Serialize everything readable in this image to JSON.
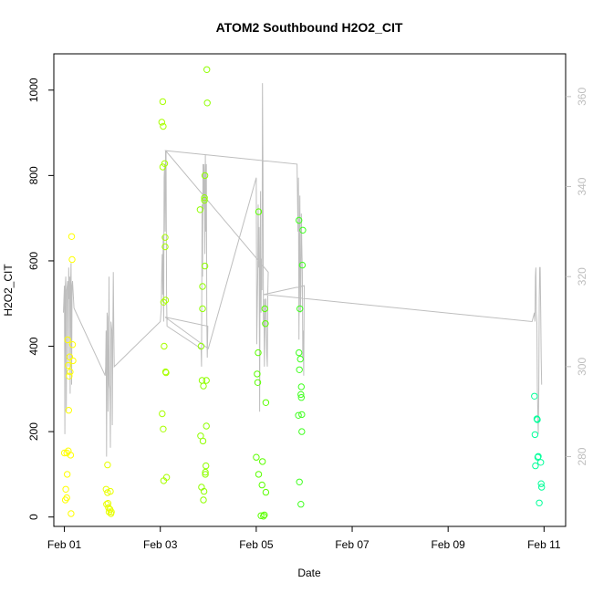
{
  "chart_data": {
    "type": "scatter",
    "title": "ATOM2 Southbound H2O2_CIT",
    "xlabel": "Date",
    "ylabel": "H2O2_CIT",
    "x_ticks": [
      {
        "value": 0,
        "label": "Feb 01"
      },
      {
        "value": 2,
        "label": "Feb 03"
      },
      {
        "value": 4,
        "label": "Feb 05"
      },
      {
        "value": 6,
        "label": "Feb 07"
      },
      {
        "value": 8,
        "label": "Feb 09"
      },
      {
        "value": 10,
        "label": "Feb 11"
      }
    ],
    "xlim": [
      -0.22,
      10.45
    ],
    "ylim": [
      -22,
      1085
    ],
    "y_ticks": [
      0,
      200,
      400,
      600,
      800,
      1000
    ],
    "y2_ticks": [
      280,
      300,
      320,
      340,
      360
    ],
    "y2lim": [
      264.5,
      369.5
    ],
    "points": [
      {
        "x": 0.0,
        "y": 150,
        "c": "#ffff00"
      },
      {
        "x": 0.02,
        "y": 40,
        "c": "#ffff00"
      },
      {
        "x": 0.03,
        "y": 65,
        "c": "#ffff00"
      },
      {
        "x": 0.05,
        "y": 150,
        "c": "#ffff00"
      },
      {
        "x": 0.05,
        "y": 45,
        "c": "#ffff00"
      },
      {
        "x": 0.06,
        "y": 100,
        "c": "#ffff00"
      },
      {
        "x": 0.07,
        "y": 415,
        "c": "#ffff00"
      },
      {
        "x": 0.08,
        "y": 355,
        "c": "#ffff00"
      },
      {
        "x": 0.08,
        "y": 155,
        "c": "#ffff00"
      },
      {
        "x": 0.09,
        "y": 250,
        "c": "#ffff00"
      },
      {
        "x": 0.1,
        "y": 330,
        "c": "#ffff00"
      },
      {
        "x": 0.11,
        "y": 375,
        "c": "#ffff00"
      },
      {
        "x": 0.12,
        "y": 340,
        "c": "#ffff00"
      },
      {
        "x": 0.13,
        "y": 145,
        "c": "#ffff00"
      },
      {
        "x": 0.14,
        "y": 8,
        "c": "#ffff00"
      },
      {
        "x": 0.15,
        "y": 657,
        "c": "#ffff00"
      },
      {
        "x": 0.16,
        "y": 603,
        "c": "#ffff00"
      },
      {
        "x": 0.17,
        "y": 404,
        "c": "#ffff00"
      },
      {
        "x": 0.18,
        "y": 366,
        "c": "#ffff00"
      },
      {
        "x": 0.87,
        "y": 65,
        "c": "#e8ff00"
      },
      {
        "x": 0.88,
        "y": 30,
        "c": "#e8ff00"
      },
      {
        "x": 0.9,
        "y": 122,
        "c": "#e8ff00"
      },
      {
        "x": 0.9,
        "y": 57,
        "c": "#e8ff00"
      },
      {
        "x": 0.91,
        "y": 32,
        "c": "#e8ff00"
      },
      {
        "x": 0.92,
        "y": 22,
        "c": "#e8ff00"
      },
      {
        "x": 0.93,
        "y": 12,
        "c": "#e8ff00"
      },
      {
        "x": 0.95,
        "y": 18,
        "c": "#e8ff00"
      },
      {
        "x": 0.96,
        "y": 60,
        "c": "#e8ff00"
      },
      {
        "x": 0.97,
        "y": 8,
        "c": "#e8ff00"
      },
      {
        "x": 0.98,
        "y": 12,
        "c": "#e8ff00"
      },
      {
        "x": 2.03,
        "y": 925,
        "c": "#a8ff00"
      },
      {
        "x": 2.04,
        "y": 242,
        "c": "#a8ff00"
      },
      {
        "x": 2.05,
        "y": 973,
        "c": "#a8ff00"
      },
      {
        "x": 2.05,
        "y": 820,
        "c": "#a8ff00"
      },
      {
        "x": 2.06,
        "y": 915,
        "c": "#a8ff00"
      },
      {
        "x": 2.06,
        "y": 206,
        "c": "#a8ff00"
      },
      {
        "x": 2.07,
        "y": 503,
        "c": "#a8ff00"
      },
      {
        "x": 2.07,
        "y": 85,
        "c": "#a8ff00"
      },
      {
        "x": 2.08,
        "y": 400,
        "c": "#a8ff00"
      },
      {
        "x": 2.09,
        "y": 828,
        "c": "#a8ff00"
      },
      {
        "x": 2.1,
        "y": 655,
        "c": "#a8ff00"
      },
      {
        "x": 2.1,
        "y": 633,
        "c": "#a8ff00"
      },
      {
        "x": 2.11,
        "y": 508,
        "c": "#a8ff00"
      },
      {
        "x": 2.11,
        "y": 340,
        "c": "#a8ff00"
      },
      {
        "x": 2.12,
        "y": 338,
        "c": "#a8ff00"
      },
      {
        "x": 2.13,
        "y": 93,
        "c": "#a8ff00"
      },
      {
        "x": 2.83,
        "y": 720,
        "c": "#90ff00"
      },
      {
        "x": 2.84,
        "y": 190,
        "c": "#90ff00"
      },
      {
        "x": 2.85,
        "y": 400,
        "c": "#90ff00"
      },
      {
        "x": 2.86,
        "y": 70,
        "c": "#90ff00"
      },
      {
        "x": 2.87,
        "y": 320,
        "c": "#90ff00"
      },
      {
        "x": 2.88,
        "y": 540,
        "c": "#90ff00"
      },
      {
        "x": 2.88,
        "y": 488,
        "c": "#90ff00"
      },
      {
        "x": 2.89,
        "y": 178,
        "c": "#90ff00"
      },
      {
        "x": 2.9,
        "y": 307,
        "c": "#90ff00"
      },
      {
        "x": 2.9,
        "y": 40,
        "c": "#90ff00"
      },
      {
        "x": 2.91,
        "y": 60,
        "c": "#90ff00"
      },
      {
        "x": 2.92,
        "y": 748,
        "c": "#90ff00"
      },
      {
        "x": 2.92,
        "y": 742,
        "c": "#90ff00"
      },
      {
        "x": 2.93,
        "y": 800,
        "c": "#90ff00"
      },
      {
        "x": 2.93,
        "y": 588,
        "c": "#90ff00"
      },
      {
        "x": 2.94,
        "y": 100,
        "c": "#90ff00"
      },
      {
        "x": 2.94,
        "y": 105,
        "c": "#90ff00"
      },
      {
        "x": 2.95,
        "y": 120,
        "c": "#90ff00"
      },
      {
        "x": 2.96,
        "y": 320,
        "c": "#90ff00"
      },
      {
        "x": 2.96,
        "y": 213,
        "c": "#90ff00"
      },
      {
        "x": 2.97,
        "y": 1048,
        "c": "#90ff00"
      },
      {
        "x": 2.98,
        "y": 970,
        "c": "#90ff00"
      },
      {
        "x": 4.0,
        "y": 140,
        "c": "#5aff00"
      },
      {
        "x": 4.02,
        "y": 335,
        "c": "#5aff00"
      },
      {
        "x": 4.03,
        "y": 315,
        "c": "#5aff00"
      },
      {
        "x": 4.04,
        "y": 385,
        "c": "#5aff00"
      },
      {
        "x": 4.05,
        "y": 715,
        "c": "#5aff00"
      },
      {
        "x": 4.05,
        "y": 100,
        "c": "#5aff00"
      },
      {
        "x": 4.1,
        "y": 3,
        "c": "#5aff00"
      },
      {
        "x": 4.12,
        "y": 75,
        "c": "#5aff00"
      },
      {
        "x": 4.13,
        "y": 130,
        "c": "#5aff00"
      },
      {
        "x": 4.15,
        "y": 2,
        "c": "#5aff00"
      },
      {
        "x": 4.17,
        "y": 5,
        "c": "#5aff00"
      },
      {
        "x": 4.18,
        "y": 488,
        "c": "#5aff00"
      },
      {
        "x": 4.19,
        "y": 453,
        "c": "#5aff00"
      },
      {
        "x": 4.2,
        "y": 268,
        "c": "#5aff00"
      },
      {
        "x": 4.2,
        "y": 58,
        "c": "#5aff00"
      },
      {
        "x": 4.88,
        "y": 238,
        "c": "#40ff20"
      },
      {
        "x": 4.89,
        "y": 695,
        "c": "#40ff20"
      },
      {
        "x": 4.89,
        "y": 385,
        "c": "#40ff20"
      },
      {
        "x": 4.9,
        "y": 345,
        "c": "#40ff20"
      },
      {
        "x": 4.9,
        "y": 82,
        "c": "#40ff20"
      },
      {
        "x": 4.91,
        "y": 488,
        "c": "#40ff20"
      },
      {
        "x": 4.92,
        "y": 370,
        "c": "#40ff20"
      },
      {
        "x": 4.93,
        "y": 30,
        "c": "#40ff20"
      },
      {
        "x": 4.93,
        "y": 287,
        "c": "#40ff20"
      },
      {
        "x": 4.94,
        "y": 305,
        "c": "#40ff20"
      },
      {
        "x": 4.94,
        "y": 280,
        "c": "#40ff20"
      },
      {
        "x": 4.95,
        "y": 240,
        "c": "#40ff20"
      },
      {
        "x": 4.95,
        "y": 200,
        "c": "#40ff20"
      },
      {
        "x": 4.96,
        "y": 590,
        "c": "#40ff20"
      },
      {
        "x": 4.97,
        "y": 672,
        "c": "#40ff20"
      },
      {
        "x": 9.8,
        "y": 283,
        "c": "#00ff99"
      },
      {
        "x": 9.81,
        "y": 193,
        "c": "#00ff99"
      },
      {
        "x": 9.82,
        "y": 120,
        "c": "#00ff99"
      },
      {
        "x": 9.85,
        "y": 230,
        "c": "#00ff99"
      },
      {
        "x": 9.86,
        "y": 228,
        "c": "#00ff99"
      },
      {
        "x": 9.87,
        "y": 140,
        "c": "#00ff99"
      },
      {
        "x": 9.88,
        "y": 142,
        "c": "#00ff99"
      },
      {
        "x": 9.9,
        "y": 33,
        "c": "#00ff99"
      },
      {
        "x": 9.93,
        "y": 128,
        "c": "#00ff99"
      },
      {
        "x": 9.94,
        "y": 78,
        "c": "#00ff99"
      },
      {
        "x": 9.95,
        "y": 70,
        "c": "#00ff99"
      }
    ],
    "line_y2": [
      [
        -0.02,
        312
      ],
      [
        0.0,
        318
      ],
      [
        0.01,
        285
      ],
      [
        0.02,
        318
      ],
      [
        0.03,
        320
      ],
      [
        0.04,
        290
      ],
      [
        0.05,
        317
      ],
      [
        0.07,
        319
      ],
      [
        0.08,
        300
      ],
      [
        0.09,
        322
      ],
      [
        0.1,
        315
      ],
      [
        0.11,
        320
      ],
      [
        0.12,
        294
      ],
      [
        0.13,
        318
      ],
      [
        0.14,
        323
      ],
      [
        0.15,
        296
      ],
      [
        0.16,
        318
      ],
      [
        0.17,
        319
      ],
      [
        0.2,
        313
      ],
      [
        0.85,
        298
      ],
      [
        0.86,
        300
      ],
      [
        0.87,
        308
      ],
      [
        0.88,
        280
      ],
      [
        0.89,
        312
      ],
      [
        0.9,
        311
      ],
      [
        0.91,
        290
      ],
      [
        0.92,
        296
      ],
      [
        0.93,
        320
      ],
      [
        0.94,
        296
      ],
      [
        0.95,
        295
      ],
      [
        0.96,
        282
      ],
      [
        0.97,
        310
      ],
      [
        0.98,
        309
      ],
      [
        0.99,
        308
      ],
      [
        1.0,
        287
      ],
      [
        1.01,
        308
      ],
      [
        1.02,
        321
      ],
      [
        1.03,
        309
      ],
      [
        1.04,
        300
      ],
      [
        2.0,
        310
      ],
      [
        2.02,
        313
      ],
      [
        2.03,
        321
      ],
      [
        2.04,
        325
      ],
      [
        2.05,
        316
      ],
      [
        2.06,
        329
      ],
      [
        2.07,
        310
      ],
      [
        2.08,
        342
      ],
      [
        2.09,
        345
      ],
      [
        2.1,
        330
      ],
      [
        2.11,
        348
      ],
      [
        2.12,
        348
      ],
      [
        2.13,
        315
      ],
      [
        2.14,
        309
      ],
      [
        2.85,
        304
      ],
      [
        2.86,
        300
      ],
      [
        2.87,
        336
      ],
      [
        2.88,
        320
      ],
      [
        2.89,
        345
      ],
      [
        2.9,
        335
      ],
      [
        2.91,
        345
      ],
      [
        2.92,
        340
      ],
      [
        2.93,
        325
      ],
      [
        2.94,
        347
      ],
      [
        2.95,
        330
      ],
      [
        2.96,
        345
      ],
      [
        2.97,
        310
      ],
      [
        2.98,
        302
      ],
      [
        2.99,
        309
      ],
      [
        2.1,
        311
      ],
      [
        3.0,
        304
      ],
      [
        4.0,
        342
      ],
      [
        4.01,
        305
      ],
      [
        4.03,
        320
      ],
      [
        4.04,
        336
      ],
      [
        4.05,
        322
      ],
      [
        4.06,
        331
      ],
      [
        4.07,
        290
      ],
      [
        4.08,
        322
      ],
      [
        4.09,
        339
      ],
      [
        4.1,
        312
      ],
      [
        4.11,
        324
      ],
      [
        4.12,
        317
      ],
      [
        4.13,
        363
      ],
      [
        4.14,
        345
      ],
      [
        4.15,
        309
      ],
      [
        4.16,
        315
      ],
      [
        4.17,
        300
      ],
      [
        4.19,
        315
      ],
      [
        4.2,
        315
      ],
      [
        4.21,
        310
      ],
      [
        4.22,
        303
      ],
      [
        4.23,
        300
      ],
      [
        4.24,
        316
      ],
      [
        4.25,
        321
      ],
      [
        2.11,
        348
      ],
      [
        4.85,
        345
      ],
      [
        4.86,
        338
      ],
      [
        4.87,
        330
      ],
      [
        4.88,
        342
      ],
      [
        4.89,
        306
      ],
      [
        4.9,
        326
      ],
      [
        4.91,
        338
      ],
      [
        4.92,
        312
      ],
      [
        4.93,
        317
      ],
      [
        4.94,
        334
      ],
      [
        4.95,
        327
      ],
      [
        4.96,
        321
      ],
      [
        4.97,
        302
      ],
      [
        4.98,
        308
      ],
      [
        4.99,
        298
      ],
      [
        5.0,
        318
      ],
      [
        4.15,
        316
      ],
      [
        4.2,
        316
      ],
      [
        9.75,
        310
      ],
      [
        9.8,
        312
      ],
      [
        9.81,
        310
      ],
      [
        9.82,
        320
      ],
      [
        9.83,
        322
      ],
      [
        9.84,
        312
      ],
      [
        9.85,
        310
      ],
      [
        9.86,
        295
      ],
      [
        9.87,
        290
      ],
      [
        9.88,
        285
      ],
      [
        9.89,
        295
      ],
      [
        9.9,
        315
      ],
      [
        9.91,
        322
      ],
      [
        9.92,
        322
      ],
      [
        9.93,
        312
      ],
      [
        9.94,
        302
      ],
      [
        9.95,
        296
      ]
    ],
    "line_color": "#bebebe",
    "grid": false
  }
}
